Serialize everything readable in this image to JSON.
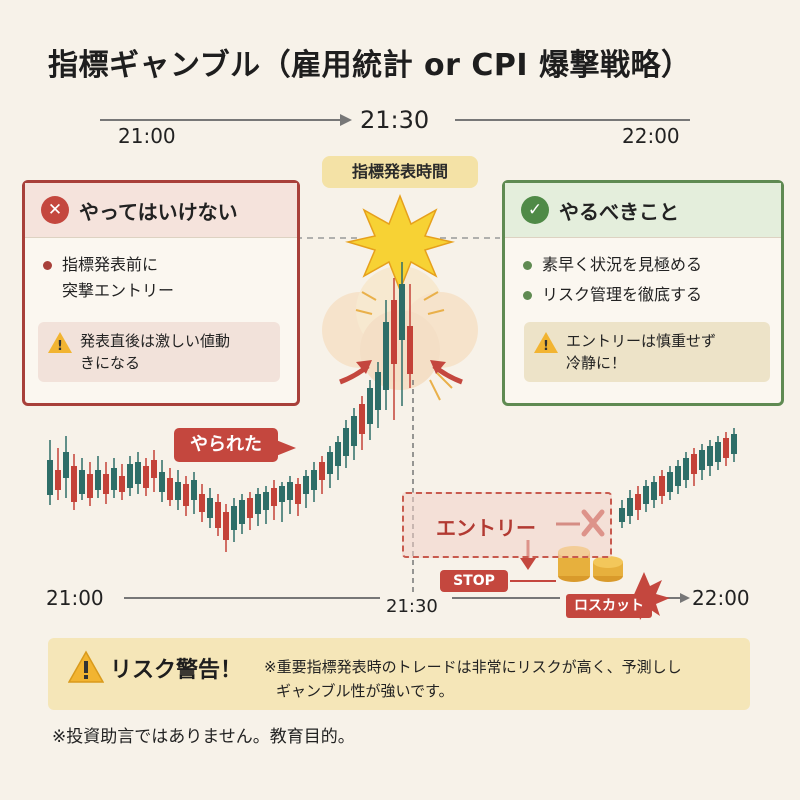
{
  "title": "指標ギャンブル（雇用統計 or CPI 爆撃戦略）",
  "timeline": {
    "start": "21:00",
    "center": "21:30",
    "end": "22:00",
    "event_badge": "指標発表時間"
  },
  "dont_panel": {
    "header": "やってはいけない",
    "icon": "x-icon",
    "bullet": [
      "指標発表前に",
      "突撃エントリー"
    ],
    "warning": [
      "発表直後は激しい値動",
      "きになる"
    ]
  },
  "do_panel": {
    "header": "やるべきこと",
    "icon": "check-icon",
    "bullets": [
      "素早く状況を見極める",
      "リスク管理を徹底する"
    ],
    "warning": [
      "エントリーは慎重せず",
      "冷静に！"
    ]
  },
  "chart": {
    "callout": "やられた",
    "entry_label": "エントリー",
    "stop_label": "STOP",
    "losscut_label": "ロスカット",
    "axis_start": "21:00",
    "axis_center": "21:30",
    "axis_end": "22:00"
  },
  "risk": {
    "title": "リスク警告！",
    "line1": "※重要指標発表時のトレードは非常にリスクが高く、予測しし",
    "line2": "ギャンブル性が強いです。"
  },
  "disclaimer": "※投資助言ではありません。教育目的。",
  "colors": {
    "background": "#f7f2e9",
    "bullish": "#2e6e68",
    "bearish": "#c44238",
    "danger": "#a8403a",
    "safe": "#5f8a52",
    "warning_bg": "#f5e6b8"
  }
}
